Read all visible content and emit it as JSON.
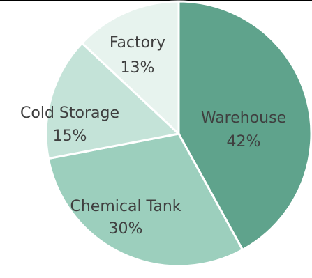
{
  "chart_data": {
    "type": "pie",
    "title": "",
    "slices": [
      {
        "label": "Warehouse",
        "value": 42,
        "value_label": "42%",
        "color": "#5fa38c"
      },
      {
        "label": "Chemical Tank",
        "value": 30,
        "value_label": "30%",
        "color": "#9ccfbd"
      },
      {
        "label": "Cold Storage",
        "value": 15,
        "value_label": "15%",
        "color": "#c4e3d8"
      },
      {
        "label": "Factory",
        "value": 13,
        "value_label": "13%",
        "color": "#e7f3ee"
      }
    ]
  }
}
